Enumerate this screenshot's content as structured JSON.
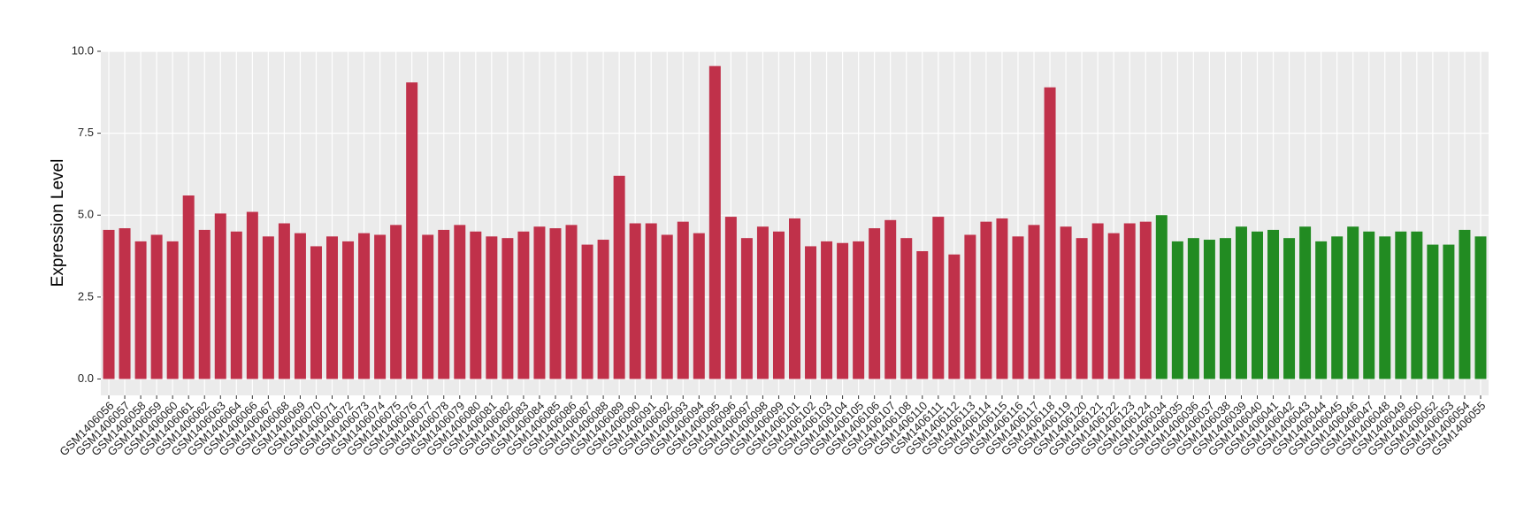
{
  "chart_data": {
    "type": "bar",
    "y_label": "Expression Level",
    "categories": [
      "GSM1406056",
      "GSM1406057",
      "GSM1406058",
      "GSM1406059",
      "GSM1406060",
      "GSM1406061",
      "GSM1406062",
      "GSM1406063",
      "GSM1406064",
      "GSM1406066",
      "GSM1406067",
      "GSM1406068",
      "GSM1406069",
      "GSM1406070",
      "GSM1406071",
      "GSM1406072",
      "GSM1406073",
      "GSM1406074",
      "GSM1406075",
      "GSM1406076",
      "GSM1406077",
      "GSM1406078",
      "GSM1406079",
      "GSM1406080",
      "GSM1406081",
      "GSM1406082",
      "GSM1406083",
      "GSM1406084",
      "GSM1406085",
      "GSM1406086",
      "GSM1406087",
      "GSM1406088",
      "GSM1406089",
      "GSM1406090",
      "GSM1406091",
      "GSM1406092",
      "GSM1406093",
      "GSM1406094",
      "GSM1406095",
      "GSM1406096",
      "GSM1406097",
      "GSM1406098",
      "GSM1406099",
      "GSM1406101",
      "GSM1406102",
      "GSM1406103",
      "GSM1406104",
      "GSM1406105",
      "GSM1406106",
      "GSM1406107",
      "GSM1406108",
      "GSM1406110",
      "GSM1406111",
      "GSM1406112",
      "GSM1406113",
      "GSM1406114",
      "GSM1406115",
      "GSM1406116",
      "GSM1406117",
      "GSM1406118",
      "GSM1406119",
      "GSM1406120",
      "GSM1406121",
      "GSM1406122",
      "GSM1406123",
      "GSM1406124",
      "GSM1406034",
      "GSM1406035",
      "GSM1406036",
      "GSM1406037",
      "GSM1406038",
      "GSM1406039",
      "GSM1406040",
      "GSM1406041",
      "GSM1406042",
      "GSM1406043",
      "GSM1406044",
      "GSM1406045",
      "GSM1406046",
      "GSM1406047",
      "GSM1406048",
      "GSM1406049",
      "GSM1406050",
      "GSM1406052",
      "GSM1406053",
      "GSM1406054",
      "GSM1406055"
    ],
    "values": [
      4.55,
      4.6,
      4.2,
      4.4,
      4.2,
      5.6,
      4.55,
      5.05,
      4.5,
      5.1,
      4.35,
      4.75,
      4.45,
      4.05,
      4.35,
      4.2,
      4.45,
      4.4,
      4.7,
      9.05,
      4.4,
      4.55,
      4.7,
      4.5,
      4.35,
      4.3,
      4.5,
      4.65,
      4.6,
      4.7,
      4.1,
      4.25,
      6.2,
      4.75,
      4.75,
      4.4,
      4.8,
      4.45,
      9.55,
      4.95,
      4.3,
      4.65,
      4.5,
      4.9,
      4.05,
      4.2,
      4.15,
      4.2,
      4.6,
      4.85,
      4.3,
      3.9,
      4.95,
      3.8,
      4.4,
      4.8,
      4.9,
      4.35,
      4.7,
      8.9,
      4.65,
      4.3,
      4.75,
      4.45,
      4.75,
      4.8,
      5.0,
      4.2,
      4.3,
      4.25,
      4.3,
      4.65,
      4.5,
      4.55,
      4.3,
      4.65,
      4.2,
      4.35,
      4.65,
      4.5,
      4.35,
      4.5,
      4.5,
      4.1,
      4.1,
      4.55,
      4.35
    ],
    "colors": [
      "#c0314a",
      "#c0314a",
      "#c0314a",
      "#c0314a",
      "#c0314a",
      "#c0314a",
      "#c0314a",
      "#c0314a",
      "#c0314a",
      "#c0314a",
      "#c0314a",
      "#c0314a",
      "#c0314a",
      "#c0314a",
      "#c0314a",
      "#c0314a",
      "#c0314a",
      "#c0314a",
      "#c0314a",
      "#c0314a",
      "#c0314a",
      "#c0314a",
      "#c0314a",
      "#c0314a",
      "#c0314a",
      "#c0314a",
      "#c0314a",
      "#c0314a",
      "#c0314a",
      "#c0314a",
      "#c0314a",
      "#c0314a",
      "#c0314a",
      "#c0314a",
      "#c0314a",
      "#c0314a",
      "#c0314a",
      "#c0314a",
      "#c0314a",
      "#c0314a",
      "#c0314a",
      "#c0314a",
      "#c0314a",
      "#c0314a",
      "#c0314a",
      "#c0314a",
      "#c0314a",
      "#c0314a",
      "#c0314a",
      "#c0314a",
      "#c0314a",
      "#c0314a",
      "#c0314a",
      "#c0314a",
      "#c0314a",
      "#c0314a",
      "#c0314a",
      "#c0314a",
      "#c0314a",
      "#c0314a",
      "#c0314a",
      "#c0314a",
      "#c0314a",
      "#c0314a",
      "#c0314a",
      "#c0314a",
      "#228b22",
      "#228b22",
      "#228b22",
      "#228b22",
      "#228b22",
      "#228b22",
      "#228b22",
      "#228b22",
      "#228b22",
      "#228b22",
      "#228b22",
      "#228b22",
      "#228b22",
      "#228b22",
      "#228b22",
      "#228b22",
      "#228b22",
      "#228b22",
      "#228b22",
      "#228b22",
      "#228b22"
    ],
    "ylim": [
      -0.5,
      10.0
    ],
    "yticks": [
      {
        "value": 0,
        "label": "0.0"
      },
      2.5,
      {
        "value": 5,
        "label": "5.0"
      },
      7.5,
      {
        "value": 10,
        "label": "10.0"
      }
    ],
    "grid": true
  }
}
